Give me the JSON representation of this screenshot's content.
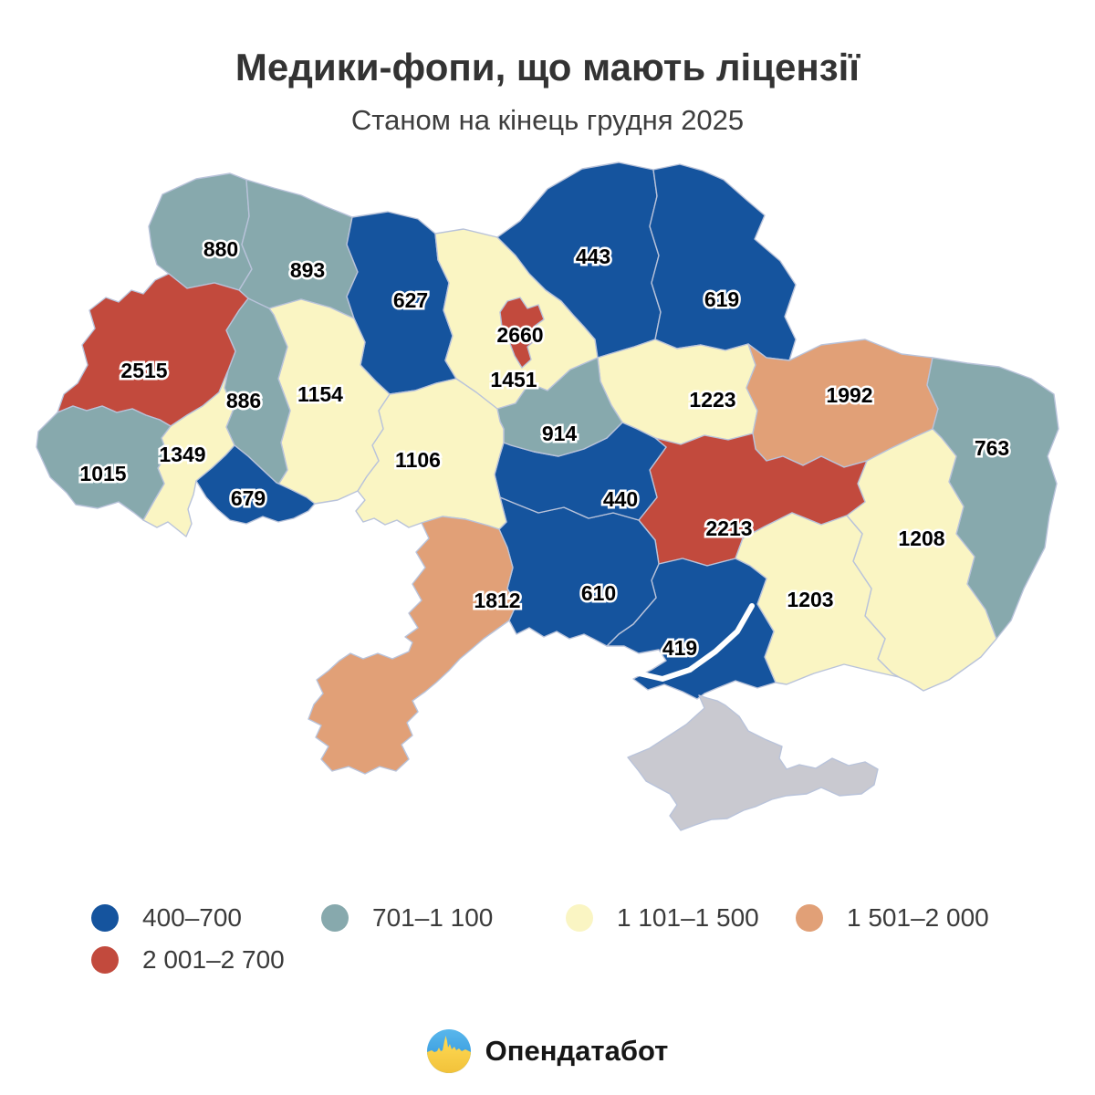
{
  "header": {
    "title": "Медики-фопи, що мають ліцензії",
    "subtitle": "Станом на кінець грудня 2025"
  },
  "chart_data": {
    "type": "heatmap",
    "subtype": "choropleth_map_ukraine_oblasts",
    "title": "Медики-фопи, що мають ліцензії",
    "subtitle": "Станом на кінець грудня 2025",
    "legend_position": "bottom-left",
    "border_color": "#b9c3da",
    "no_data_color": "#c9c9d0",
    "label_style": {
      "fill": "#000000",
      "halo": "#ffffff"
    },
    "bins": [
      {
        "label": "400–700",
        "color": "#15549e"
      },
      {
        "label": "701–1 100",
        "color": "#87a9ad"
      },
      {
        "label": "1 101–1 500",
        "color": "#faf5c3"
      },
      {
        "label": "1 501–2 000",
        "color": "#e1a077"
      },
      {
        "label": "2 001–2 700",
        "color": "#c24a3d"
      }
    ],
    "regions": [
      {
        "id": "volyn",
        "value": 880,
        "bin": "701–1 100"
      },
      {
        "id": "rivne",
        "value": 893,
        "bin": "701–1 100"
      },
      {
        "id": "zhytomyr",
        "value": 627,
        "bin": "400–700"
      },
      {
        "id": "kyiv-oblast",
        "value": 1451,
        "bin": "1 101–1 500"
      },
      {
        "id": "kyiv-city",
        "value": 2660,
        "bin": "2 001–2 700"
      },
      {
        "id": "chernihiv",
        "value": 443,
        "bin": "400–700"
      },
      {
        "id": "sumy",
        "value": 619,
        "bin": "400–700"
      },
      {
        "id": "poltava",
        "value": 1223,
        "bin": "1 101–1 500"
      },
      {
        "id": "kharkiv",
        "value": 1992,
        "bin": "1 501–2 000"
      },
      {
        "id": "luhansk",
        "value": 763,
        "bin": "701–1 100"
      },
      {
        "id": "donetsk",
        "value": 1208,
        "bin": "1 101–1 500"
      },
      {
        "id": "dnipro",
        "value": 2213,
        "bin": "2 001–2 700"
      },
      {
        "id": "zaporizhzhia",
        "value": 1203,
        "bin": "1 101–1 500"
      },
      {
        "id": "kherson",
        "value": 419,
        "bin": "400–700"
      },
      {
        "id": "mykolaiv",
        "value": 610,
        "bin": "400–700"
      },
      {
        "id": "kirovohrad",
        "value": 440,
        "bin": "400–700"
      },
      {
        "id": "cherkasy",
        "value": 914,
        "bin": "701–1 100"
      },
      {
        "id": "vinnytsia",
        "value": 1106,
        "bin": "1 101–1 500"
      },
      {
        "id": "khmelnytskyi",
        "value": 1154,
        "bin": "1 101–1 500"
      },
      {
        "id": "ternopil",
        "value": 886,
        "bin": "701–1 100"
      },
      {
        "id": "lviv",
        "value": 2515,
        "bin": "2 001–2 700"
      },
      {
        "id": "ivano-frankivsk",
        "value": 1349,
        "bin": "1 101–1 500"
      },
      {
        "id": "zakarpattia",
        "value": 1015,
        "bin": "701–1 100"
      },
      {
        "id": "chernivtsi",
        "value": 679,
        "bin": "400–700"
      },
      {
        "id": "odesa",
        "value": 1812,
        "bin": "1 501–2 000"
      },
      {
        "id": "crimea",
        "value": null,
        "bin": null
      }
    ]
  },
  "legend": {
    "items": [
      {
        "label": "400–700",
        "color": "#15549e",
        "row": 1
      },
      {
        "label": "701–1 100",
        "color": "#87a9ad",
        "row": 1
      },
      {
        "label": "1 101–1 500",
        "color": "#faf5c3",
        "row": 1
      },
      {
        "label": "1 501–2 000",
        "color": "#e1a077",
        "row": 1
      },
      {
        "label": "2 001–2 700",
        "color": "#c24a3d",
        "row": 2
      }
    ]
  },
  "footer": {
    "logo_text": "Опендатабот",
    "logo_icon": "opendatabot-skyline-icon",
    "logo_blue": "#3aa1e0",
    "logo_yellow": "#ffd84d"
  }
}
